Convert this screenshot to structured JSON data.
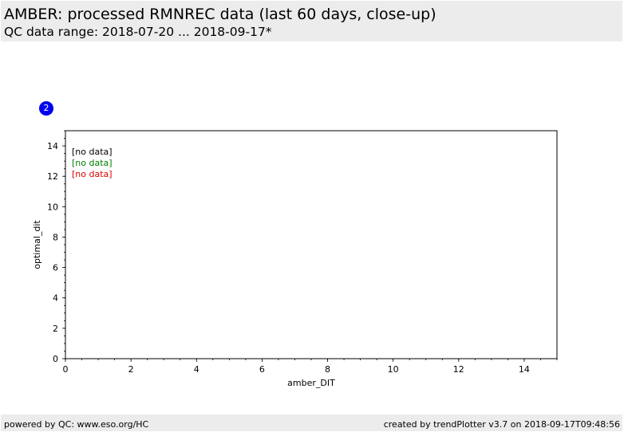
{
  "header": {
    "title": "AMBER: processed RMNREC data (last 60 days, close-up)",
    "subtitle": "QC data range: 2018-07-20 ... 2018-09-17*"
  },
  "badge": {
    "label": "2",
    "color": "#0000ee"
  },
  "footer": {
    "left": "powered by QC: www.eso.org/HC",
    "right": "created by trendPlotter v3.7 on 2018-09-17T09:48:56"
  },
  "chart_data": {
    "type": "scatter",
    "xlabel": "amber_DIT",
    "ylabel": "optimal_dit",
    "xlim": [
      0,
      15
    ],
    "ylim": [
      0,
      15
    ],
    "xticks": [
      0,
      2,
      4,
      6,
      8,
      10,
      12,
      14
    ],
    "yticks": [
      0,
      2,
      4,
      6,
      8,
      10,
      12,
      14
    ],
    "grid": false,
    "legend_position": "top-left",
    "series": [
      {
        "label": "[no data]",
        "color": "#000000",
        "points": []
      },
      {
        "label": "[no data]",
        "color": "#008000",
        "points": []
      },
      {
        "label": "[no data]",
        "color": "#dd0000",
        "points": []
      }
    ]
  }
}
